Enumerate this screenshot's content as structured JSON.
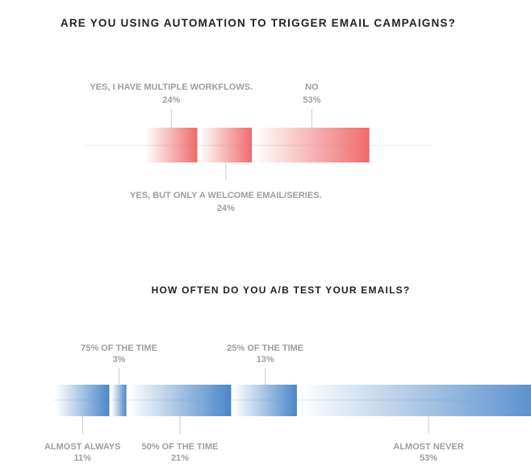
{
  "chart_data": [
    {
      "type": "bar",
      "title": "ARE YOU USING AUTOMATION TO TRIGGER EMAIL CAMPAIGNS?",
      "series_color": "#ef6b6b",
      "categories": [
        "YES, I HAVE MULTIPLE WORKFLOWS.",
        "YES, BUT ONLY A WELCOME EMAIL/SERIES.",
        "NO"
      ],
      "values": [
        24,
        24,
        53
      ],
      "value_labels": [
        "24%",
        "24%",
        "53%"
      ],
      "label_position": [
        "above",
        "below",
        "above"
      ]
    },
    {
      "type": "bar",
      "title": "HOW OFTEN DO YOU A/B TEST YOUR EMAILS?",
      "series_color": "#4a86c8",
      "categories": [
        "ALMOST ALWAYS",
        "75% OF THE TIME",
        "50% OF THE TIME",
        "25% OF THE TIME",
        "ALMOST NEVER"
      ],
      "values": [
        11,
        3,
        21,
        13,
        53
      ],
      "value_labels": [
        "11%",
        "3%",
        "21%",
        "13%",
        "53%"
      ],
      "label_position": [
        "below",
        "above",
        "below",
        "above",
        "below"
      ]
    }
  ]
}
